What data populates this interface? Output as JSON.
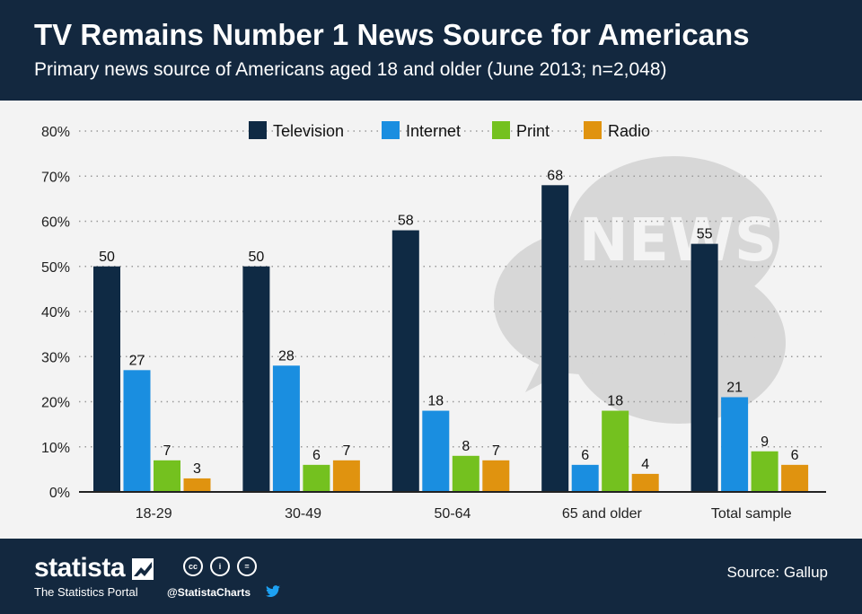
{
  "header": {
    "title": "TV Remains Number 1 News Source for Americans",
    "subtitle": "Primary news source of Americans aged 18 and older (June 2013; n=2,048)"
  },
  "background_graphic": {
    "icon": "news-speech-bubble-icon",
    "text": "NEWS"
  },
  "footer": {
    "brand": "statista",
    "tagline": "The Statistics Portal",
    "handle": "@StatistaCharts",
    "source": "Source: Gallup",
    "icons": [
      "creative-commons-icon",
      "attribution-icon",
      "no-derivatives-icon",
      "twitter-icon"
    ]
  },
  "colors": {
    "header_bg": "#13283f",
    "plot_bg": "#f3f3f3",
    "series": [
      "#0f2a44",
      "#1a8ee0",
      "#74c11f",
      "#e0930f"
    ]
  },
  "chart_data": {
    "type": "bar",
    "title": "TV Remains Number 1 News Source for Americans",
    "subtitle": "Primary news source of Americans aged 18 and older (June 2013; n=2,048)",
    "categories": [
      "18-29",
      "30-49",
      "50-64",
      "65 and older",
      "Total sample"
    ],
    "series": [
      {
        "name": "Television",
        "color": "#0f2a44",
        "values": [
          50,
          50,
          58,
          68,
          55
        ]
      },
      {
        "name": "Internet",
        "color": "#1a8ee0",
        "values": [
          27,
          28,
          18,
          6,
          21
        ]
      },
      {
        "name": "Print",
        "color": "#74c11f",
        "values": [
          7,
          6,
          8,
          18,
          9
        ]
      },
      {
        "name": "Radio",
        "color": "#e0930f",
        "values": [
          3,
          7,
          7,
          4,
          6
        ]
      }
    ],
    "ylim": [
      0,
      80
    ],
    "yticks": [
      "0%",
      "10%",
      "20%",
      "30%",
      "40%",
      "50%",
      "60%",
      "70%",
      "80%"
    ],
    "xlabel": "",
    "ylabel": "",
    "grid": true,
    "legend_position": "top-center"
  }
}
